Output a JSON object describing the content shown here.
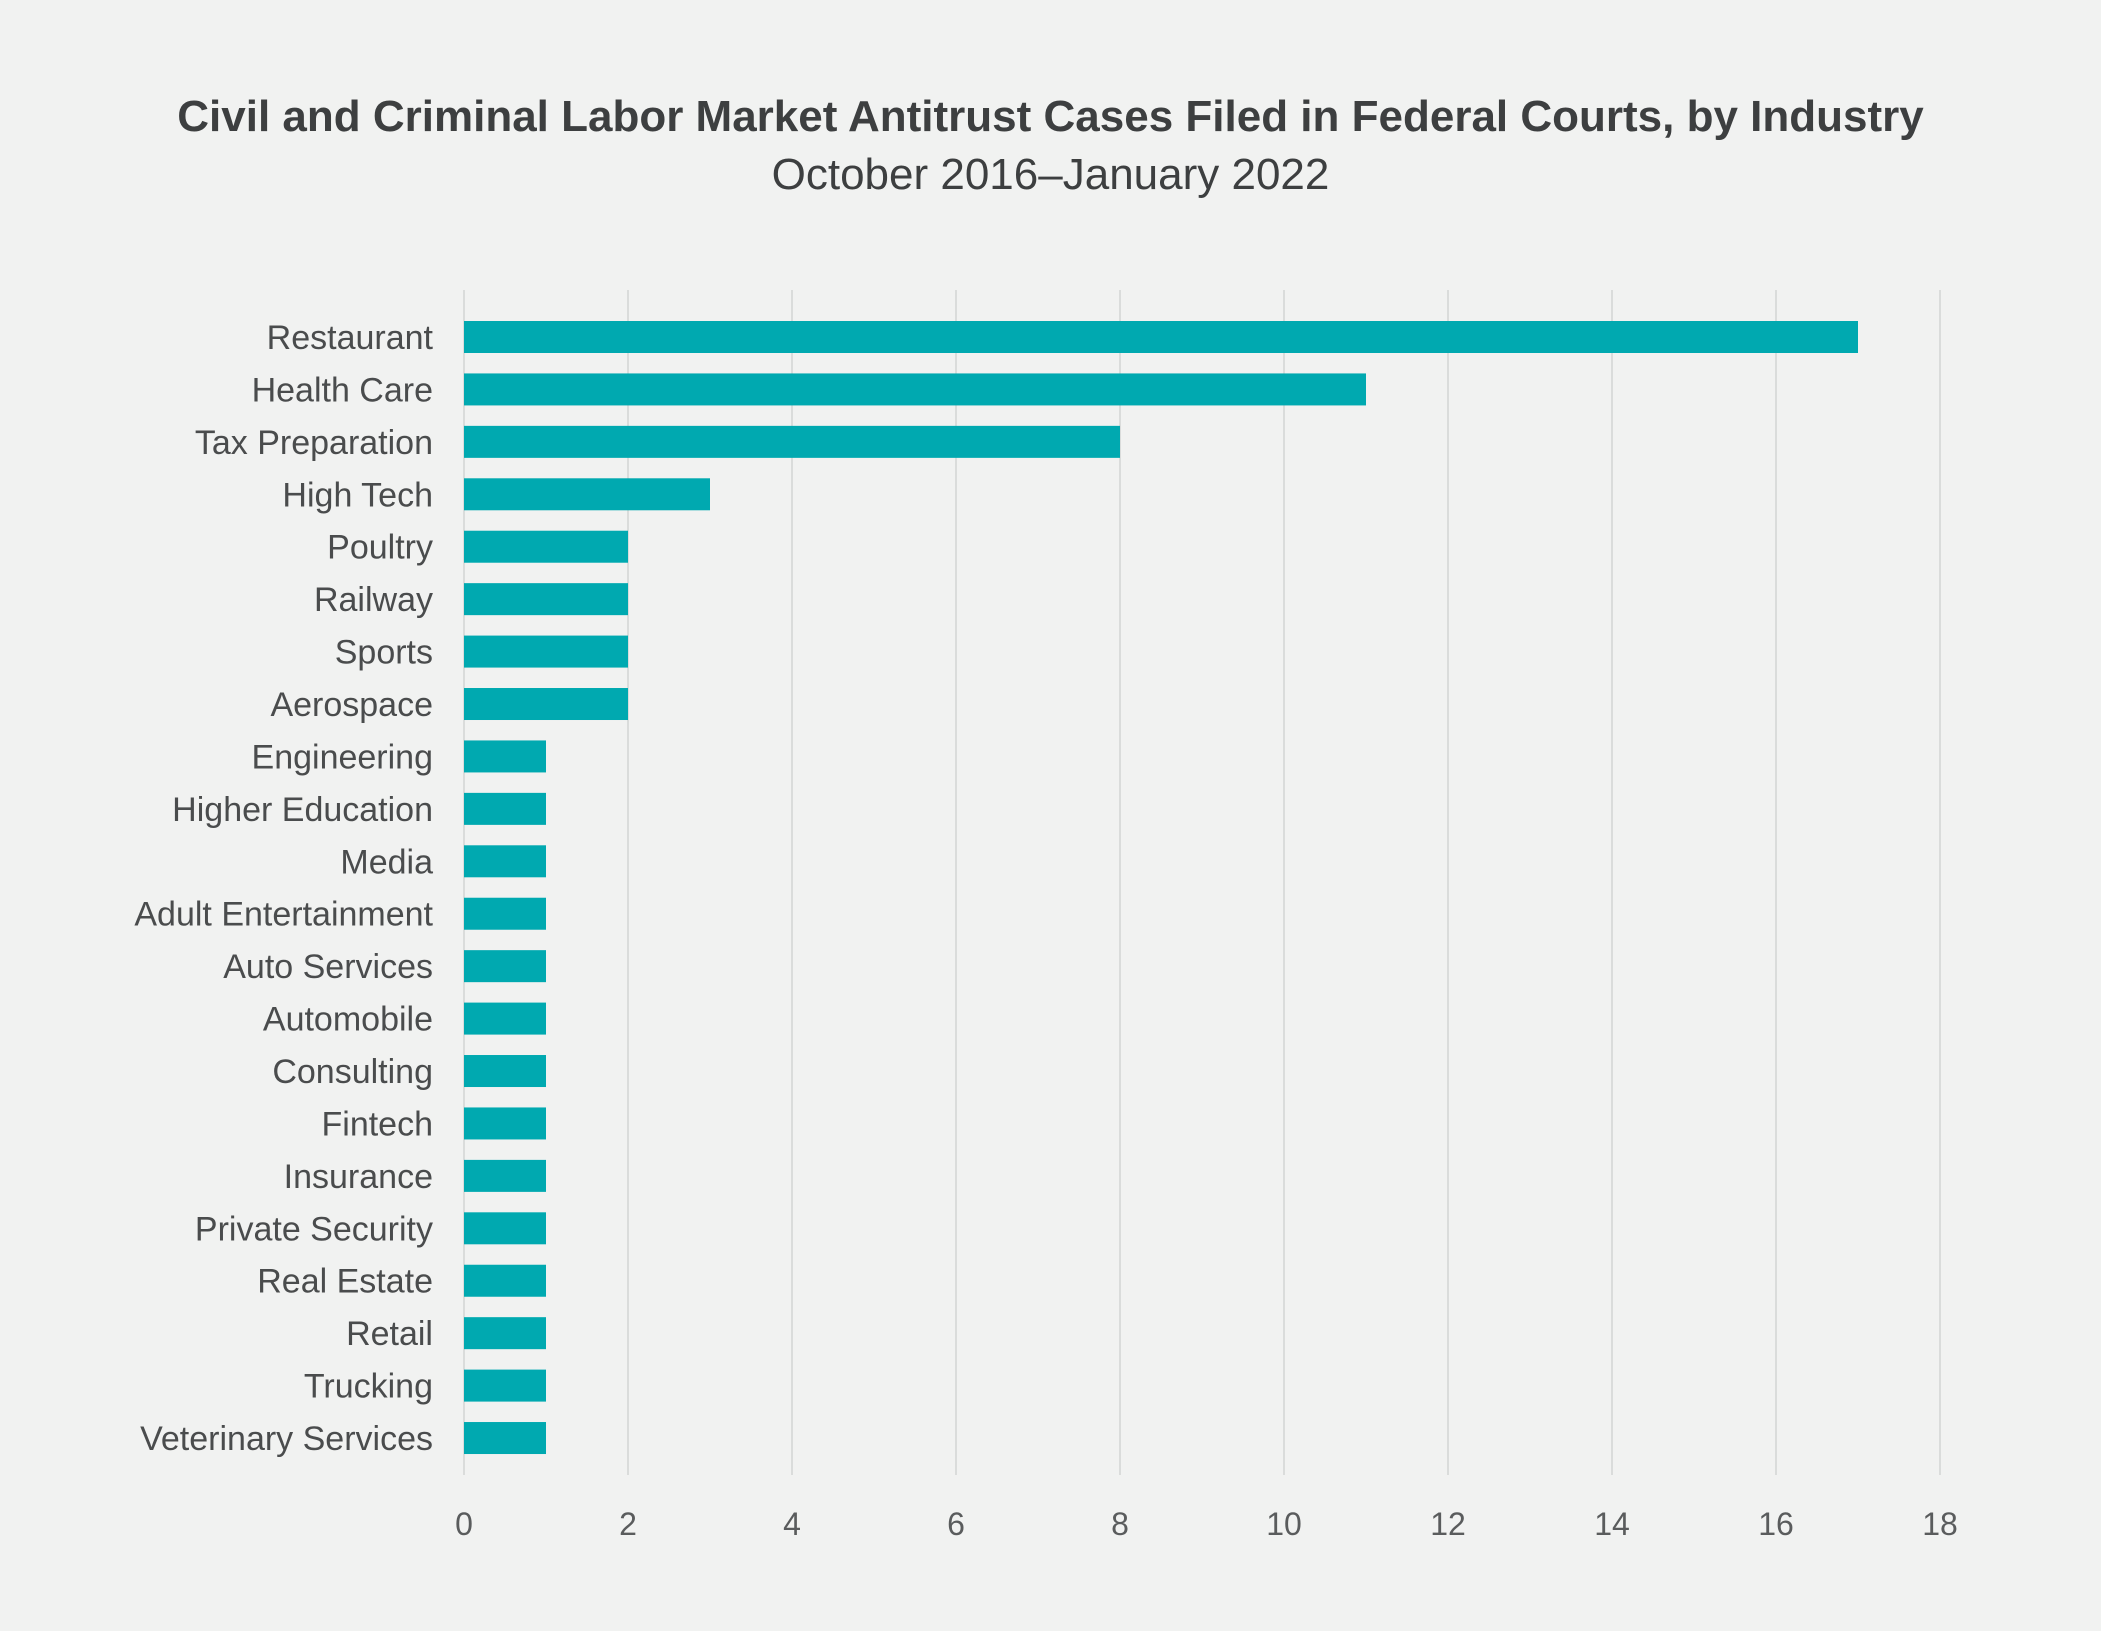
{
  "chart_data": {
    "type": "bar",
    "orientation": "horizontal",
    "title": "Civil and Criminal Labor Market Antitrust Cases Filed in Federal Courts, by Industry",
    "subtitle": "October 2016–January 2022",
    "categories": [
      "Restaurant",
      "Health Care",
      "Tax Preparation",
      "High Tech",
      "Poultry",
      "Railway",
      "Sports",
      "Aerospace",
      "Engineering",
      "Higher Education",
      "Media",
      "Adult Entertainment",
      "Auto Services",
      "Automobile",
      "Consulting",
      "Fintech",
      "Insurance",
      "Private Security",
      "Real Estate",
      "Retail",
      "Trucking",
      "Veterinary Services"
    ],
    "values": [
      17,
      11,
      8,
      3,
      2,
      2,
      2,
      2,
      1,
      1,
      1,
      1,
      1,
      1,
      1,
      1,
      1,
      1,
      1,
      1,
      1,
      1
    ],
    "xlim": [
      0,
      18
    ],
    "xticks": [
      0,
      2,
      4,
      6,
      8,
      10,
      12,
      14,
      16,
      18
    ],
    "xlabel": "",
    "ylabel": "",
    "grid": "vertical",
    "legend": "none",
    "bar_color": "#00a9b0",
    "background_color": "#f1f2f1"
  }
}
